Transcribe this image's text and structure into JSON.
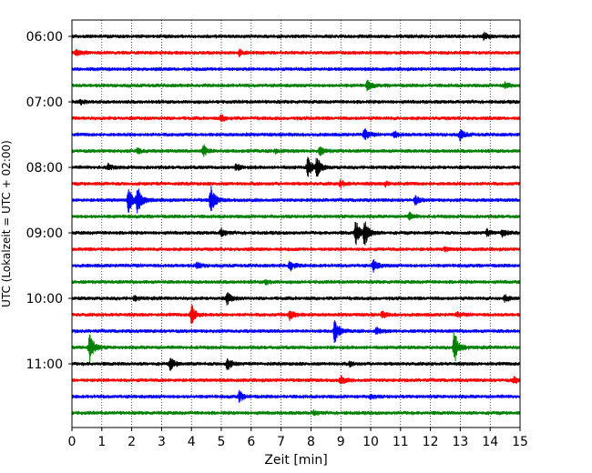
{
  "chart_data": {
    "type": "line",
    "title": "",
    "xlabel": "Zeit  [min]",
    "ylabel": "UTC (Lokalzeit = UTC + 02:00)",
    "xlim": [
      0,
      15
    ],
    "x_ticks": [
      "0",
      "1",
      "2",
      "3",
      "4",
      "5",
      "6",
      "7",
      "8",
      "9",
      "10",
      "11",
      "12",
      "13",
      "14",
      "15"
    ],
    "y_tick_labels": [
      "06:00",
      "07:00",
      "08:00",
      "09:00",
      "10:00",
      "11:00"
    ],
    "grid": "vertical-dotted",
    "colors": [
      "#000000",
      "#ff0000",
      "#0000ff",
      "#008000"
    ],
    "series": [
      {
        "start": "06:00",
        "color": "#000000",
        "events": [
          {
            "t": 13.8,
            "a": 0.3
          }
        ]
      },
      {
        "start": "06:15",
        "color": "#ff0000",
        "events": [
          {
            "t": 0.15,
            "a": 0.4
          },
          {
            "t": 5.6,
            "a": 0.3
          }
        ]
      },
      {
        "start": "06:30",
        "color": "#0000ff",
        "events": []
      },
      {
        "start": "06:45",
        "color": "#008000",
        "events": [
          {
            "t": 9.9,
            "a": 0.5
          },
          {
            "t": 14.5,
            "a": 0.3
          }
        ]
      },
      {
        "start": "07:00",
        "color": "#000000",
        "events": [
          {
            "t": 0.3,
            "a": 0.2
          }
        ]
      },
      {
        "start": "07:15",
        "color": "#ff0000",
        "events": [
          {
            "t": 5.0,
            "a": 0.3
          }
        ]
      },
      {
        "start": "07:30",
        "color": "#0000ff",
        "events": [
          {
            "t": 9.8,
            "a": 0.6
          },
          {
            "t": 13.0,
            "a": 0.5
          },
          {
            "t": 10.8,
            "a": 0.3
          }
        ]
      },
      {
        "start": "07:45",
        "color": "#008000",
        "events": [
          {
            "t": 4.4,
            "a": 0.6
          },
          {
            "t": 2.2,
            "a": 0.3
          },
          {
            "t": 8.3,
            "a": 0.4
          },
          {
            "t": 6.8,
            "a": 0.2
          }
        ]
      },
      {
        "start": "08:00",
        "color": "#000000",
        "events": [
          {
            "t": 7.9,
            "a": 1.0
          },
          {
            "t": 8.2,
            "a": 0.9
          },
          {
            "t": 5.5,
            "a": 0.3
          },
          {
            "t": 1.2,
            "a": 0.3
          }
        ]
      },
      {
        "start": "08:15",
        "color": "#ff0000",
        "events": [
          {
            "t": 9.0,
            "a": 0.3
          },
          {
            "t": 10.5,
            "a": 0.2
          }
        ]
      },
      {
        "start": "08:30",
        "color": "#0000ff",
        "events": [
          {
            "t": 1.9,
            "a": 1.2
          },
          {
            "t": 2.2,
            "a": 1.4
          },
          {
            "t": 4.65,
            "a": 1.4
          },
          {
            "t": 11.5,
            "a": 0.4
          }
        ]
      },
      {
        "start": "08:45",
        "color": "#008000",
        "events": [
          {
            "t": 11.3,
            "a": 0.3
          }
        ]
      },
      {
        "start": "09:00",
        "color": "#000000",
        "events": [
          {
            "t": 9.5,
            "a": 1.2
          },
          {
            "t": 9.8,
            "a": 1.4
          },
          {
            "t": 5.0,
            "a": 0.4
          },
          {
            "t": 14.4,
            "a": 0.4
          },
          {
            "t": 13.9,
            "a": 0.3
          }
        ]
      },
      {
        "start": "09:15",
        "color": "#ff0000",
        "events": [
          {
            "t": 12.5,
            "a": 0.2
          }
        ]
      },
      {
        "start": "09:30",
        "color": "#0000ff",
        "events": [
          {
            "t": 7.3,
            "a": 0.5
          },
          {
            "t": 10.1,
            "a": 0.6
          },
          {
            "t": 4.2,
            "a": 0.3
          }
        ]
      },
      {
        "start": "09:45",
        "color": "#008000",
        "events": [
          {
            "t": 6.5,
            "a": 0.2
          }
        ]
      },
      {
        "start": "10:00",
        "color": "#000000",
        "events": [
          {
            "t": 5.2,
            "a": 0.6
          },
          {
            "t": 14.5,
            "a": 0.3
          },
          {
            "t": 2.1,
            "a": 0.2
          }
        ]
      },
      {
        "start": "10:15",
        "color": "#ff0000",
        "events": [
          {
            "t": 4.0,
            "a": 1.1
          },
          {
            "t": 7.3,
            "a": 0.6
          },
          {
            "t": 10.4,
            "a": 0.3
          },
          {
            "t": 12.9,
            "a": 0.2
          }
        ]
      },
      {
        "start": "10:30",
        "color": "#0000ff",
        "events": [
          {
            "t": 8.8,
            "a": 1.2
          },
          {
            "t": 10.2,
            "a": 0.3
          }
        ]
      },
      {
        "start": "10:45",
        "color": "#008000",
        "events": [
          {
            "t": 0.6,
            "a": 1.5
          },
          {
            "t": 12.8,
            "a": 1.6
          }
        ]
      },
      {
        "start": "11:00",
        "color": "#000000",
        "events": [
          {
            "t": 3.3,
            "a": 0.6
          },
          {
            "t": 5.2,
            "a": 0.6
          },
          {
            "t": 9.3,
            "a": 0.2
          }
        ]
      },
      {
        "start": "11:15",
        "color": "#ff0000",
        "events": [
          {
            "t": 9.0,
            "a": 0.4
          },
          {
            "t": 14.8,
            "a": 0.3
          }
        ]
      },
      {
        "start": "11:30",
        "color": "#0000ff",
        "events": [
          {
            "t": 5.6,
            "a": 0.5
          },
          {
            "t": 10.0,
            "a": 0.2
          }
        ]
      },
      {
        "start": "11:45",
        "color": "#008000",
        "events": [
          {
            "t": 8.1,
            "a": 0.2
          }
        ]
      }
    ]
  }
}
